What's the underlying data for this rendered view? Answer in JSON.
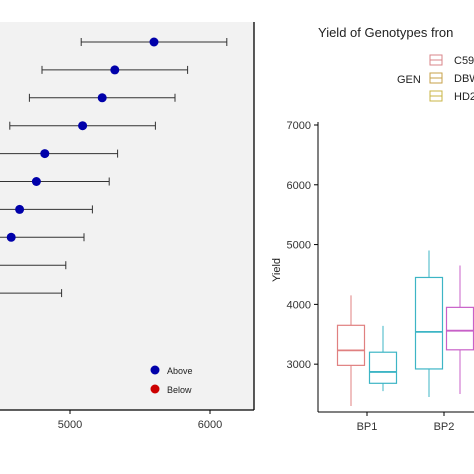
{
  "chart_data": [
    {
      "type": "scatter",
      "variant": "dot-with-error-bars",
      "title": "",
      "xlabel": "",
      "ylabel": "",
      "xticks": [
        "5000",
        "6000"
      ],
      "xlim": [
        4500,
        6300
      ],
      "background": "#f2f2f2",
      "legend": {
        "placement": "bottom-right",
        "entries": [
          {
            "label": "Above",
            "color": "#0000aa"
          },
          {
            "label": "Below",
            "color": "#cc0000"
          }
        ]
      },
      "points": [
        {
          "row": 1,
          "x": 5600,
          "lo": 5080,
          "hi": 6120,
          "group": "Above"
        },
        {
          "row": 2,
          "x": 5320,
          "lo": 4800,
          "hi": 5840,
          "group": "Above"
        },
        {
          "row": 3,
          "x": 5230,
          "lo": 4710,
          "hi": 5750,
          "group": "Above"
        },
        {
          "row": 4,
          "x": 5090,
          "lo": 4570,
          "hi": 5610,
          "group": "Above"
        },
        {
          "row": 5,
          "x": 4820,
          "lo": 4300,
          "hi": 5340,
          "group": "Above"
        },
        {
          "row": 6,
          "x": 4760,
          "lo": 4240,
          "hi": 5280,
          "group": "Above"
        },
        {
          "row": 7,
          "x": 4640,
          "lo": 4120,
          "hi": 5160,
          "group": "Above"
        },
        {
          "row": 8,
          "x": 4580,
          "lo": 4060,
          "hi": 5100,
          "group": "Above"
        },
        {
          "row": 9,
          "x": null,
          "lo": 3950,
          "hi": 4970,
          "group": ""
        },
        {
          "row": 10,
          "x": null,
          "lo": 3930,
          "hi": 4940,
          "group": ""
        }
      ]
    },
    {
      "type": "box",
      "title": "Yield of Genotypes fron",
      "xlabel": "",
      "ylabel": "Yield",
      "categories": [
        "BP1",
        "BP2"
      ],
      "yticks": [
        "3000",
        "4000",
        "5000",
        "6000",
        "7000"
      ],
      "ylim": [
        2200,
        7050
      ],
      "legend": {
        "title": "GEN",
        "placement": "top-right",
        "entries": [
          {
            "label": "C59",
            "color": "#d9868a"
          },
          {
            "label": "DBW",
            "color": "#c7a24a"
          },
          {
            "label": "HD2",
            "color": "#c9b444"
          }
        ]
      },
      "boxes": [
        {
          "category": "BP1",
          "color": "#e08080",
          "min": 2300,
          "q1": 2980,
          "median": 3230,
          "q3": 3650,
          "max": 4150
        },
        {
          "category": "BP1",
          "color": "#3db5c5",
          "min": 2550,
          "q1": 2680,
          "median": 2870,
          "q3": 3200,
          "max": 3640
        },
        {
          "category": "BP2",
          "color": "#3db5c5",
          "min": 2450,
          "q1": 2920,
          "median": 3540,
          "q3": 4450,
          "max": 4900
        },
        {
          "category": "BP2",
          "color": "#c860c8",
          "min": 2500,
          "q1": 3240,
          "median": 3560,
          "q3": 3950,
          "max": 4650
        }
      ]
    }
  ]
}
